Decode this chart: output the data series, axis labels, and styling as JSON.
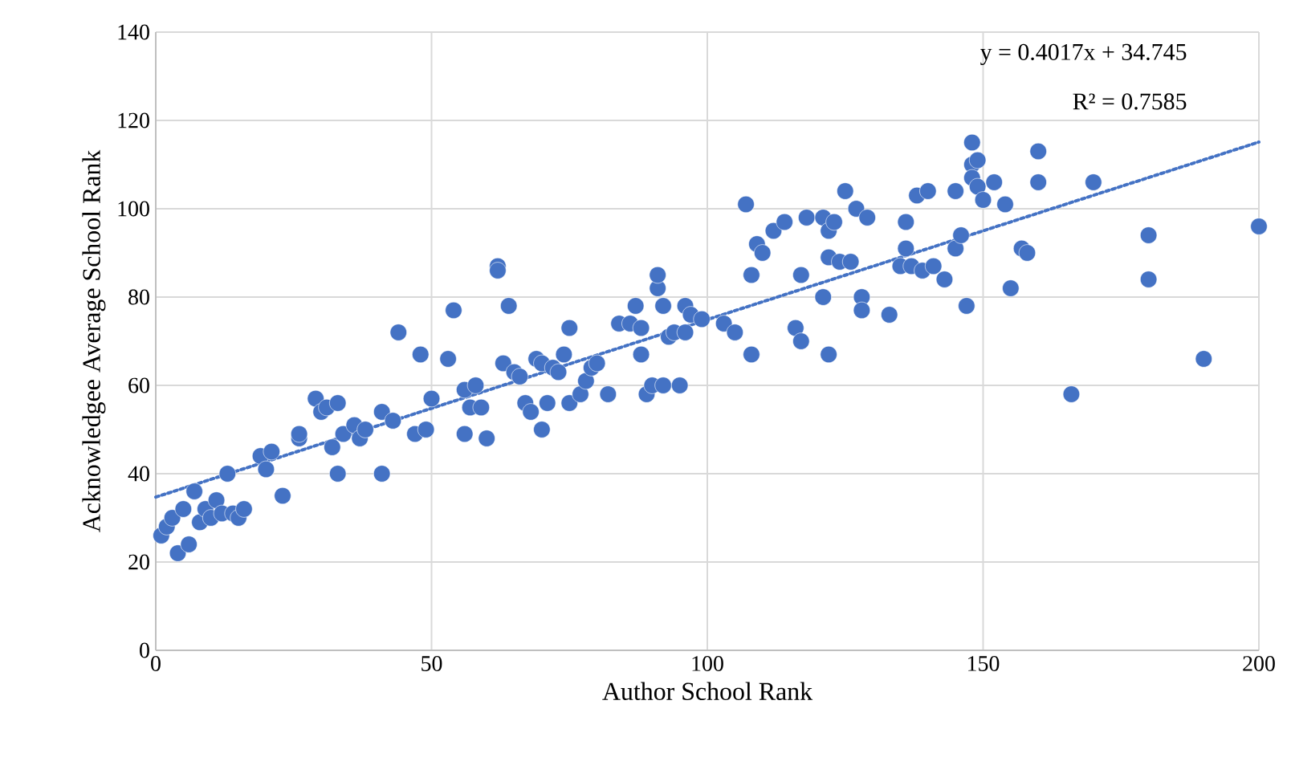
{
  "chart_data": {
    "type": "scatter",
    "xlabel": "Author School Rank",
    "ylabel": "Acknowledgee Average School Rank",
    "xlim": [
      0,
      200
    ],
    "ylim": [
      0,
      140
    ],
    "xticks": [
      0,
      50,
      100,
      150,
      200
    ],
    "yticks": [
      0,
      20,
      40,
      60,
      80,
      100,
      120,
      140
    ],
    "grid": true,
    "annotations": [
      "y = 0.4017x + 34.745",
      "R² = 0.7585"
    ],
    "series": [
      {
        "color": "#4472c4",
        "marker": "circle",
        "x": [
          1,
          2,
          3,
          4,
          5,
          6,
          7,
          8,
          9,
          10,
          11,
          12,
          13,
          14,
          15,
          16,
          19,
          20,
          21,
          23,
          26,
          26,
          29,
          30,
          31,
          32,
          33,
          33,
          34,
          36,
          37,
          38,
          41,
          41,
          43,
          44,
          47,
          48,
          49,
          50,
          53,
          54,
          56,
          56,
          57,
          58,
          59,
          60,
          62,
          62,
          63,
          64,
          65,
          66,
          67,
          68,
          69,
          70,
          70,
          71,
          72,
          73,
          74,
          75,
          75,
          77,
          78,
          79,
          80,
          82,
          84,
          86,
          87,
          88,
          88,
          89,
          90,
          91,
          91,
          92,
          92,
          93,
          94,
          95,
          96,
          96,
          97,
          99,
          103,
          105,
          107,
          108,
          108,
          109,
          110,
          112,
          114,
          116,
          117,
          117,
          118,
          121,
          121,
          122,
          122,
          122,
          123,
          124,
          125,
          126,
          127,
          128,
          128,
          129,
          133,
          135,
          136,
          136,
          137,
          138,
          139,
          140,
          141,
          143,
          145,
          145,
          146,
          147,
          148,
          148,
          148,
          149,
          149,
          150,
          152,
          154,
          155,
          157,
          158,
          160,
          160,
          166,
          170,
          180,
          180,
          190,
          200
        ],
        "values": [
          26,
          28,
          30,
          22,
          32,
          24,
          36,
          29,
          32,
          30,
          34,
          31,
          40,
          31,
          30,
          32,
          44,
          41,
          45,
          35,
          48,
          49,
          57,
          54,
          55,
          46,
          56,
          40,
          49,
          51,
          48,
          50,
          40,
          54,
          52,
          72,
          49,
          67,
          50,
          57,
          66,
          77,
          59,
          49,
          55,
          60,
          55,
          48,
          87,
          86,
          65,
          78,
          63,
          62,
          56,
          54,
          66,
          65,
          50,
          56,
          64,
          63,
          67,
          73,
          56,
          58,
          61,
          64,
          65,
          58,
          74,
          74,
          78,
          67,
          73,
          58,
          60,
          82,
          85,
          78,
          60,
          71,
          72,
          60,
          78,
          72,
          76,
          75,
          74,
          72,
          101,
          85,
          67,
          92,
          90,
          95,
          97,
          73,
          85,
          70,
          98,
          98,
          80,
          67,
          89,
          95,
          97,
          88,
          104,
          88,
          100,
          80,
          77,
          98,
          76,
          87,
          97,
          91,
          87,
          103,
          86,
          104,
          87,
          84,
          91,
          104,
          94,
          78,
          115,
          110,
          107,
          111,
          105,
          102,
          106,
          101,
          82,
          91,
          90,
          113,
          106,
          58,
          106,
          94,
          84,
          66,
          96
        ]
      },
      {
        "type": "line",
        "color": "#4472c4",
        "line_style": "dotted",
        "marker": "none",
        "x": [
          0,
          200
        ],
        "values": [
          34.7,
          115.1
        ]
      }
    ]
  }
}
